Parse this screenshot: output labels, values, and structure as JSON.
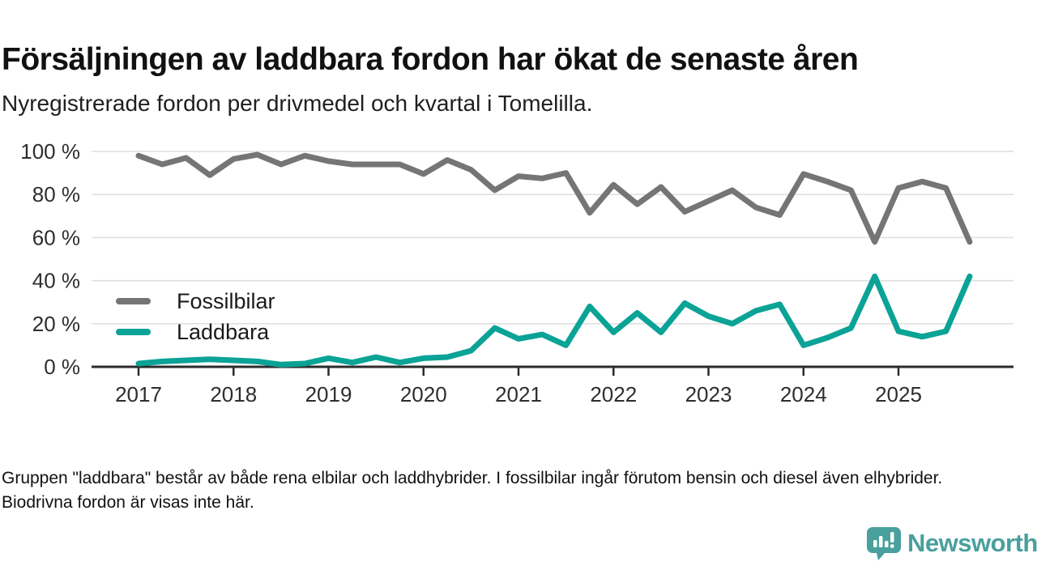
{
  "header": {
    "title": "Försäljningen av laddbara fordon har ökat de senaste åren",
    "subtitle": "Nyregistrerade fordon per drivmedel och kvartal i Tomelilla."
  },
  "chart_data": {
    "type": "line",
    "x": [
      "2017 Q1",
      "2017 Q2",
      "2017 Q3",
      "2017 Q4",
      "2018 Q1",
      "2018 Q2",
      "2018 Q3",
      "2018 Q4",
      "2019 Q1",
      "2019 Q2",
      "2019 Q3",
      "2019 Q4",
      "2020 Q1",
      "2020 Q2",
      "2020 Q3",
      "2020 Q4",
      "2021 Q1",
      "2021 Q2",
      "2021 Q3",
      "2021 Q4",
      "2022 Q1",
      "2022 Q2",
      "2022 Q3",
      "2022 Q4",
      "2023 Q1",
      "2023 Q2",
      "2023 Q3",
      "2023 Q4",
      "2024 Q1",
      "2024 Q2",
      "2024 Q3",
      "2024 Q4",
      "2025 Q1",
      "2025 Q2",
      "2025 Q3",
      "2025 Q4"
    ],
    "series": [
      {
        "name": "Fossilbilar",
        "color": "#757575",
        "unit": "%",
        "values": [
          98,
          94,
          97,
          89,
          96.5,
          98.5,
          94,
          98,
          95.5,
          94,
          94,
          94,
          89.5,
          96,
          91.5,
          82,
          88.5,
          87.5,
          90,
          71.5,
          84.5,
          75.5,
          83.5,
          72,
          77,
          82,
          74,
          70.5,
          89.5,
          86,
          82,
          58,
          83,
          86,
          83,
          58
        ]
      },
      {
        "name": "Laddbara",
        "color": "#0aa396",
        "unit": "%",
        "values": [
          1.5,
          2.5,
          3,
          3.5,
          3,
          2.5,
          1,
          1.5,
          4,
          2,
          4.5,
          2,
          4,
          4.5,
          7.5,
          18,
          13,
          15,
          10,
          28,
          16,
          25,
          16,
          29.5,
          23.5,
          20,
          26,
          29,
          10,
          13.5,
          18,
          42,
          16.5,
          14,
          16.5,
          42
        ]
      }
    ],
    "x_tick_labels": [
      "2017",
      "2018",
      "2019",
      "2020",
      "2021",
      "2022",
      "2023",
      "2024",
      "2025"
    ],
    "y_tick_labels": [
      "0 %",
      "20 %",
      "40 %",
      "60 %",
      "80 %",
      "100 %"
    ],
    "ylim": [
      0,
      100
    ],
    "grid": true,
    "legend_position": "inside-left",
    "axis_color": "#2b2b2b",
    "gridline_color": "#dedede",
    "tick_label_color": "#2e2e2e"
  },
  "footer": {
    "note": "Gruppen \"laddbara\" består av både rena elbilar och laddhybrider. I fossilbilar ingår förutom bensin och diesel även elhybrider. Biodrivna fordon är visas inte här."
  },
  "branding": {
    "logo_text": "Newsworthy",
    "logo_color": "#49a09d",
    "icon": "newsworthy-speech-bubble-chart-icon"
  }
}
